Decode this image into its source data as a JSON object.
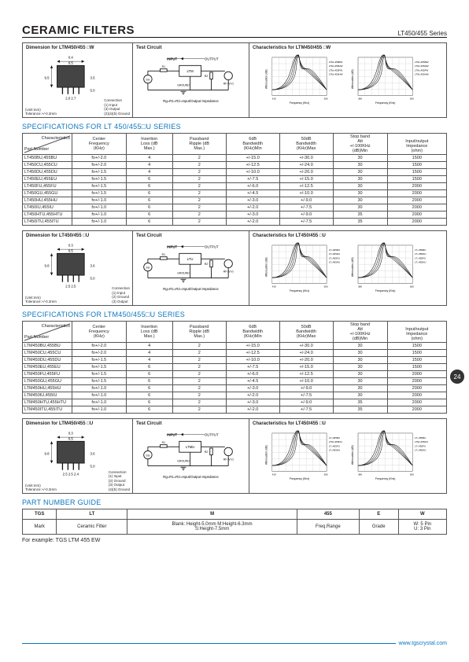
{
  "header": {
    "title": "CERAMIC FILTERS",
    "series": "LT450/455 Series"
  },
  "page_number": "24",
  "panel_sets": [
    {
      "dim_title": "Dimension for LTM450/455 □W",
      "test_title": "Test Circuit",
      "char_title": "Characteristics for LTM450/455 □W",
      "unit_text": "(Unit:mm)\nTolerance:+/-0.3mm",
      "conn_text": "Connection\n(1) Input\n(3) Output\n(2)(4)(5) Ground",
      "dim_values": {
        "w": "6.5",
        "h": "9.5",
        "lead": "0.4",
        "pitch_a": "2.0",
        "pitch_b": "2.7",
        "height": "3.5",
        "pin_h": "5.0"
      },
      "test": {
        "input": "INPUT",
        "output": "OUTPUT",
        "box": "LTM",
        "ground": "GROUND",
        "res": "R2",
        "rf": "RF |V.V|",
        "note": "Rg=R1=R2=Input/Output Impedance"
      },
      "char": {
        "xlabel": "Frequency (Khz)",
        "ylabel": "Attenuation (dB)",
        "x1_min": "410",
        "x1_max": "500",
        "x2_min": "380",
        "x2_max": "630",
        "legend": [
          "LTM□455BW",
          "LTM□455DW",
          "LTM□455FW",
          "LTM□455HW"
        ]
      }
    },
    {
      "dim_title": "Dimension for LT450/455 □U",
      "test_title": "Test Circuit",
      "char_title": "Characteristics for LT450/455 □U",
      "unit_text": "(Unit:mm)\nTolerance:+/-0.3mm",
      "conn_text": "Connection\n(1) Input\n(2) Ground\n(3) Output",
      "dim_values": {
        "w": "6.5",
        "h": "9.8",
        "pitch_a": "2.5",
        "pitch_b": "2.5",
        "height": "3.6",
        "pin_h": "5.0",
        "lead": "0.3",
        "top": "0.3"
      },
      "test": {
        "input": "INPUT",
        "output": "OUTPUT",
        "box": "LTU",
        "ground": "GROUND",
        "res": "R2",
        "rf": "RF |V.V|",
        "note": "Rg=R1=R2=Input/Output Impedance"
      },
      "char": {
        "xlabel": "Frequency (Khz)",
        "ylabel": "Attenuation (dB)",
        "x1_min": "410",
        "x1_max": "500",
        "x2_min": "380",
        "x2_max": "630",
        "legend": [
          "LT□455BU",
          "LT□455DU",
          "LT□455FU",
          "LT□455HU"
        ]
      }
    },
    {
      "dim_title": "Dimension for LTM450/455 □U",
      "test_title": "Test Circuit",
      "char_title": "Characteristics for LT450/455 □U",
      "unit_text": "(Unit:mm)\nTolerance:+/-0.3mm",
      "conn_text": "Connection\n(1) Input\n(2) Ground\n(3) Output\n(4)(5) Ground",
      "dim_values": {
        "w": "6.5",
        "h": "9.8",
        "pitch_a": "2.5",
        "pitch_b": "2.5",
        "pitch_c": "2.4",
        "height": "3.6",
        "pin_h": "5.0",
        "lead": "0.3"
      },
      "test": {
        "input": "INPUT",
        "output": "OUTPUT",
        "box": "LTMU",
        "ground": "GROUND",
        "res": "R2",
        "rf": "RF |V.V|",
        "note": "Rg=R1=R2=Input/Output Impedance"
      },
      "char": {
        "xlabel": "Frequency (Khz)",
        "ylabel": "Attenuation (dB)",
        "x1_min": "410",
        "x1_max": "500",
        "x2_min": "380",
        "x2_max": "630",
        "legend": [
          "LT□455BU",
          "LTM□455DU",
          "LT□455FU",
          "LT□455HU"
        ]
      }
    }
  ],
  "spec_sections": [
    {
      "title": "SPECIFICATIONS  FOR LT 450/455□U SERIES",
      "columns": [
        "Characteristics",
        "Center Frequency (KHz)",
        "Insertion Loss (dB Max.)",
        "Passband Ripple (dB Max.)",
        "6dB Bandwidth (KHz)Min",
        "50dB Bandwidth (KHz)Max",
        "Stop band Att +/-100KHz (dB)Min",
        "Input/output Impedance (ohm)"
      ],
      "part_label": "Part Number",
      "rows": [
        [
          "LT450BU,455BU",
          "fo+/-2.0",
          "4",
          "2",
          "+/-15.0",
          "+/-30.0",
          "30",
          "1500"
        ],
        [
          "LT450CU,455CU",
          "fo+/-2.0",
          "4",
          "2",
          "+/-12.5",
          "+/-24.0",
          "30",
          "1500"
        ],
        [
          "LT450DU,455DU",
          "fo+/-1.5",
          "4",
          "2",
          "+/-10.0",
          "+/-20.0",
          "30",
          "1500"
        ],
        [
          "LT450EU,455EU",
          "fo+/-1.5",
          "6",
          "2",
          "+/-7.5",
          "+/-15.0",
          "30",
          "1500"
        ],
        [
          "LT450FU,455FU",
          "fo+/-1.5",
          "6",
          "2",
          "+/-6.0",
          "+/-12.5",
          "30",
          "2000"
        ],
        [
          "LT450GU,455GU",
          "fo+/-1.5",
          "6",
          "2",
          "+/-4.5",
          "+/-10.0",
          "30",
          "2000"
        ],
        [
          "LT450HU,455HU",
          "fo+/-1.0",
          "6",
          "2",
          "+/-3.0",
          "+/-9.0",
          "30",
          "2000"
        ],
        [
          "LT450IU,455IU",
          "fo+/-1.0",
          "6",
          "2",
          "+/-2.0",
          "+/-7.5",
          "30",
          "2000"
        ],
        [
          "LT450HTU,455HTU",
          "fo+/-1.0",
          "6",
          "2",
          "+/-3.0",
          "+/-9.0",
          "35",
          "2000"
        ],
        [
          "LT450ITU,455ITU",
          "fo+/-1.0",
          "6",
          "2",
          "+/-2.0",
          "+/-7.5",
          "35",
          "2000"
        ]
      ]
    },
    {
      "title": "SPECIFICATIONS FOR LTM450/455□U SERIES",
      "columns": [
        "Characteristics",
        "Center Frequency (KHz)",
        "Insertion Loss (dB Max.)",
        "Passband Ripple (dB Max.)",
        "6dB Bandwidth (KHz)Min",
        "50dB Bandwidth (KHz)Max",
        "Stop band Att +/-100KHz (dB)Min",
        "Input/output Impedance (ohm)"
      ],
      "part_label": "Part Number",
      "rows": [
        [
          "LTM450BU,455BU",
          "fo+/-2.0",
          "4",
          "2",
          "+/-15.0",
          "+/-30.0",
          "30",
          "1500"
        ],
        [
          "LTM450CU,455CU",
          "fo+/-2.0",
          "4",
          "2",
          "+/-12.5",
          "+/-24.0",
          "30",
          "1500"
        ],
        [
          "LTM450DU,455DU",
          "fo+/-1.5",
          "4",
          "2",
          "+/-10.0",
          "+/-20.0",
          "30",
          "1500"
        ],
        [
          "LTM450EU,455EU",
          "fo+/-1.5",
          "6",
          "2",
          "+/-7.5",
          "+/-15.0",
          "30",
          "1500"
        ],
        [
          "LTM450FU,455FU",
          "fo+/-1.5",
          "6",
          "2",
          "+/-6.0",
          "+/-12.5",
          "30",
          "2000"
        ],
        [
          "LTM450GU,455GU",
          "fo+/-1.5",
          "6",
          "2",
          "+/-4.5",
          "+/-10.0",
          "30",
          "2000"
        ],
        [
          "LTM450HU,455HU",
          "fo+/-1.0",
          "6",
          "2",
          "+/-3.0",
          "+/-9.0",
          "30",
          "2000"
        ],
        [
          "LTM450IU,455IU",
          "fo+/-1.0",
          "6",
          "2",
          "+/-2.0",
          "+/-7.5",
          "30",
          "2000"
        ],
        [
          "LTM450HTU,455HTU",
          "fo+/-1.0",
          "6",
          "2",
          "+/-3.0",
          "+/-9.0",
          "35",
          "2000"
        ],
        [
          "LTM450ITU,455ITU",
          "fo+/-1.0",
          "6",
          "2",
          "+/-2.0",
          "+/-7.5",
          "35",
          "2000"
        ]
      ]
    }
  ],
  "guide": {
    "title": "PART NUMBER  GUIDE",
    "header": [
      "TGS",
      "LT",
      "M",
      "455",
      "E",
      "W"
    ],
    "row": [
      "Mark",
      "Ceramic Filter",
      "Blank: Height-5.0mm    M:Height-6.3mm\nS:Height-7.5mm",
      "Freq.Range",
      "Grade",
      "W: 5 Pin\nU: 3 Pin"
    ],
    "example": "For  example: TGS  LTM 455 EW"
  },
  "footer": {
    "url": "www.tgscrystal.com"
  },
  "colors": {
    "blue": "#0b76c0",
    "border": "#555",
    "text": "#231f20"
  }
}
